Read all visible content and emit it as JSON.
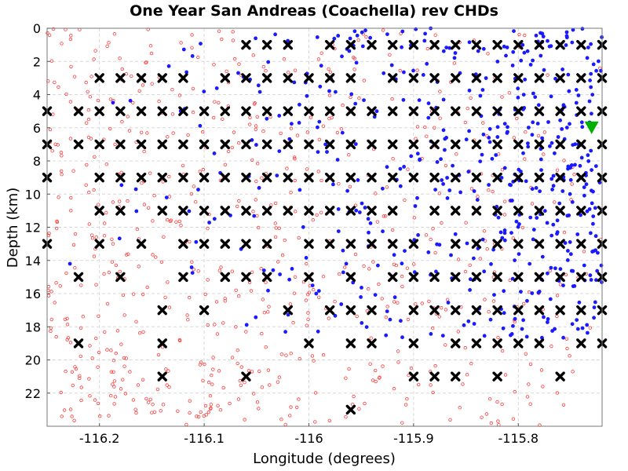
{
  "chart_data": {
    "type": "scatter",
    "title": "One Year San Andreas (Coachella) rev CHDs",
    "xlabel": "Longitude (degrees)",
    "ylabel": "Depth (km)",
    "xlim": [
      -116.25,
      -115.72
    ],
    "ylim": [
      24,
      0
    ],
    "y_inverted": true,
    "grid": true,
    "x_ticks": [
      -116.2,
      -116.1,
      -116.0,
      -115.9,
      -115.8
    ],
    "x_tick_labels": [
      "-116.2",
      "-116.1",
      "-116",
      "-115.9",
      "-115.8"
    ],
    "y_ticks": [
      0,
      2,
      4,
      6,
      8,
      10,
      12,
      14,
      16,
      18,
      20,
      22
    ],
    "y_tick_labels": [
      "0",
      "2",
      "4",
      "6",
      "8",
      "10",
      "12",
      "14",
      "16",
      "18",
      "20",
      "22"
    ],
    "colors": {
      "background_events": "#ff3b3b",
      "cluster_events": "#1a1aff",
      "grid_nodes": "#000000",
      "reference_marker": "#00b000",
      "grid": "#d8d8d8"
    },
    "series": [
      {
        "marker": "cross",
        "color": "#000000",
        "points": [
          [
            -116.06,
            1
          ],
          [
            -116.04,
            1
          ],
          [
            -116.02,
            1
          ],
          [
            -115.98,
            1
          ],
          [
            -115.96,
            1
          ],
          [
            -115.94,
            1
          ],
          [
            -115.92,
            1
          ],
          [
            -115.9,
            1
          ],
          [
            -115.88,
            1
          ],
          [
            -115.86,
            1
          ],
          [
            -115.84,
            1
          ],
          [
            -115.82,
            1
          ],
          [
            -115.8,
            1
          ],
          [
            -115.78,
            1
          ],
          [
            -115.76,
            1
          ],
          [
            -115.74,
            1
          ],
          [
            -115.72,
            1
          ],
          [
            -116.2,
            3
          ],
          [
            -116.18,
            3
          ],
          [
            -116.16,
            3
          ],
          [
            -116.14,
            3
          ],
          [
            -116.12,
            3
          ],
          [
            -116.08,
            3
          ],
          [
            -116.06,
            3
          ],
          [
            -116.04,
            3
          ],
          [
            -116.02,
            3
          ],
          [
            -116.0,
            3
          ],
          [
            -115.98,
            3
          ],
          [
            -115.96,
            3
          ],
          [
            -115.92,
            3
          ],
          [
            -115.9,
            3
          ],
          [
            -115.88,
            3
          ],
          [
            -115.86,
            3
          ],
          [
            -115.84,
            3
          ],
          [
            -115.82,
            3
          ],
          [
            -115.8,
            3
          ],
          [
            -115.78,
            3
          ],
          [
            -115.76,
            3
          ],
          [
            -115.74,
            3
          ],
          [
            -115.72,
            3
          ],
          [
            -116.25,
            5
          ],
          [
            -116.22,
            5
          ],
          [
            -116.2,
            5
          ],
          [
            -116.18,
            5
          ],
          [
            -116.16,
            5
          ],
          [
            -116.14,
            5
          ],
          [
            -116.12,
            5
          ],
          [
            -116.1,
            5
          ],
          [
            -116.08,
            5
          ],
          [
            -116.06,
            5
          ],
          [
            -116.04,
            5
          ],
          [
            -116.02,
            5
          ],
          [
            -116.0,
            5
          ],
          [
            -115.98,
            5
          ],
          [
            -115.96,
            5
          ],
          [
            -115.94,
            5
          ],
          [
            -115.92,
            5
          ],
          [
            -115.9,
            5
          ],
          [
            -115.88,
            5
          ],
          [
            -115.86,
            5
          ],
          [
            -115.84,
            5
          ],
          [
            -115.82,
            5
          ],
          [
            -115.8,
            5
          ],
          [
            -115.78,
            5
          ],
          [
            -115.76,
            5
          ],
          [
            -115.74,
            5
          ],
          [
            -115.72,
            5
          ],
          [
            -116.25,
            7
          ],
          [
            -116.22,
            7
          ],
          [
            -116.2,
            7
          ],
          [
            -116.18,
            7
          ],
          [
            -116.16,
            7
          ],
          [
            -116.14,
            7
          ],
          [
            -116.12,
            7
          ],
          [
            -116.1,
            7
          ],
          [
            -116.08,
            7
          ],
          [
            -116.06,
            7
          ],
          [
            -116.04,
            7
          ],
          [
            -116.02,
            7
          ],
          [
            -116.0,
            7
          ],
          [
            -115.98,
            7
          ],
          [
            -115.96,
            7
          ],
          [
            -115.94,
            7
          ],
          [
            -115.92,
            7
          ],
          [
            -115.9,
            7
          ],
          [
            -115.88,
            7
          ],
          [
            -115.86,
            7
          ],
          [
            -115.84,
            7
          ],
          [
            -115.82,
            7
          ],
          [
            -115.8,
            7
          ],
          [
            -115.78,
            7
          ],
          [
            -115.76,
            7
          ],
          [
            -115.74,
            7
          ],
          [
            -115.72,
            7
          ],
          [
            -116.25,
            9
          ],
          [
            -116.2,
            9
          ],
          [
            -116.18,
            9
          ],
          [
            -116.16,
            9
          ],
          [
            -116.14,
            9
          ],
          [
            -116.12,
            9
          ],
          [
            -116.1,
            9
          ],
          [
            -116.08,
            9
          ],
          [
            -116.06,
            9
          ],
          [
            -116.04,
            9
          ],
          [
            -116.02,
            9
          ],
          [
            -116.0,
            9
          ],
          [
            -115.98,
            9
          ],
          [
            -115.96,
            9
          ],
          [
            -115.94,
            9
          ],
          [
            -115.92,
            9
          ],
          [
            -115.9,
            9
          ],
          [
            -115.88,
            9
          ],
          [
            -115.86,
            9
          ],
          [
            -115.84,
            9
          ],
          [
            -115.82,
            9
          ],
          [
            -115.8,
            9
          ],
          [
            -115.78,
            9
          ],
          [
            -115.76,
            9
          ],
          [
            -115.74,
            9
          ],
          [
            -115.72,
            9
          ],
          [
            -116.2,
            11
          ],
          [
            -116.18,
            11
          ],
          [
            -116.14,
            11
          ],
          [
            -116.12,
            11
          ],
          [
            -116.1,
            11
          ],
          [
            -116.08,
            11
          ],
          [
            -116.06,
            11
          ],
          [
            -116.04,
            11
          ],
          [
            -116.02,
            11
          ],
          [
            -116.0,
            11
          ],
          [
            -115.98,
            11
          ],
          [
            -115.96,
            11
          ],
          [
            -115.94,
            11
          ],
          [
            -115.92,
            11
          ],
          [
            -115.88,
            11
          ],
          [
            -115.86,
            11
          ],
          [
            -115.84,
            11
          ],
          [
            -115.82,
            11
          ],
          [
            -115.8,
            11
          ],
          [
            -115.78,
            11
          ],
          [
            -115.76,
            11
          ],
          [
            -115.74,
            11
          ],
          [
            -115.72,
            11
          ],
          [
            -116.25,
            13
          ],
          [
            -116.2,
            13
          ],
          [
            -116.16,
            13
          ],
          [
            -116.12,
            13
          ],
          [
            -116.1,
            13
          ],
          [
            -116.08,
            13
          ],
          [
            -116.06,
            13
          ],
          [
            -116.04,
            13
          ],
          [
            -116.0,
            13
          ],
          [
            -115.98,
            13
          ],
          [
            -115.96,
            13
          ],
          [
            -115.94,
            13
          ],
          [
            -115.92,
            13
          ],
          [
            -115.9,
            13
          ],
          [
            -115.86,
            13
          ],
          [
            -115.84,
            13
          ],
          [
            -115.82,
            13
          ],
          [
            -115.8,
            13
          ],
          [
            -115.78,
            13
          ],
          [
            -115.76,
            13
          ],
          [
            -115.74,
            13
          ],
          [
            -115.72,
            13
          ],
          [
            -116.22,
            15
          ],
          [
            -116.18,
            15
          ],
          [
            -116.12,
            15
          ],
          [
            -116.08,
            15
          ],
          [
            -116.06,
            15
          ],
          [
            -116.04,
            15
          ],
          [
            -116.0,
            15
          ],
          [
            -115.96,
            15
          ],
          [
            -115.92,
            15
          ],
          [
            -115.9,
            15
          ],
          [
            -115.88,
            15
          ],
          [
            -115.86,
            15
          ],
          [
            -115.84,
            15
          ],
          [
            -115.82,
            15
          ],
          [
            -115.8,
            15
          ],
          [
            -115.78,
            15
          ],
          [
            -115.76,
            15
          ],
          [
            -115.74,
            15
          ],
          [
            -115.72,
            15
          ],
          [
            -116.14,
            17
          ],
          [
            -116.1,
            17
          ],
          [
            -116.02,
            17
          ],
          [
            -115.98,
            17
          ],
          [
            -115.96,
            17
          ],
          [
            -115.94,
            17
          ],
          [
            -115.9,
            17
          ],
          [
            -115.88,
            17
          ],
          [
            -115.86,
            17
          ],
          [
            -115.84,
            17
          ],
          [
            -115.82,
            17
          ],
          [
            -115.8,
            17
          ],
          [
            -115.78,
            17
          ],
          [
            -115.76,
            17
          ],
          [
            -115.74,
            17
          ],
          [
            -115.72,
            17
          ],
          [
            -116.22,
            19
          ],
          [
            -116.14,
            19
          ],
          [
            -116.0,
            19
          ],
          [
            -115.96,
            19
          ],
          [
            -115.94,
            19
          ],
          [
            -115.9,
            19
          ],
          [
            -115.86,
            19
          ],
          [
            -115.84,
            19
          ],
          [
            -115.82,
            19
          ],
          [
            -115.8,
            19
          ],
          [
            -115.78,
            19
          ],
          [
            -115.74,
            19
          ],
          [
            -115.72,
            19
          ],
          [
            -116.14,
            21
          ],
          [
            -116.06,
            21
          ],
          [
            -115.9,
            21
          ],
          [
            -115.88,
            21
          ],
          [
            -115.86,
            21
          ],
          [
            -115.82,
            21
          ],
          [
            -115.76,
            21
          ],
          [
            -115.96,
            23
          ]
        ]
      },
      {
        "marker": "triangle-down",
        "color": "#00b000",
        "points": [
          [
            -115.73,
            6
          ]
        ]
      }
    ]
  }
}
